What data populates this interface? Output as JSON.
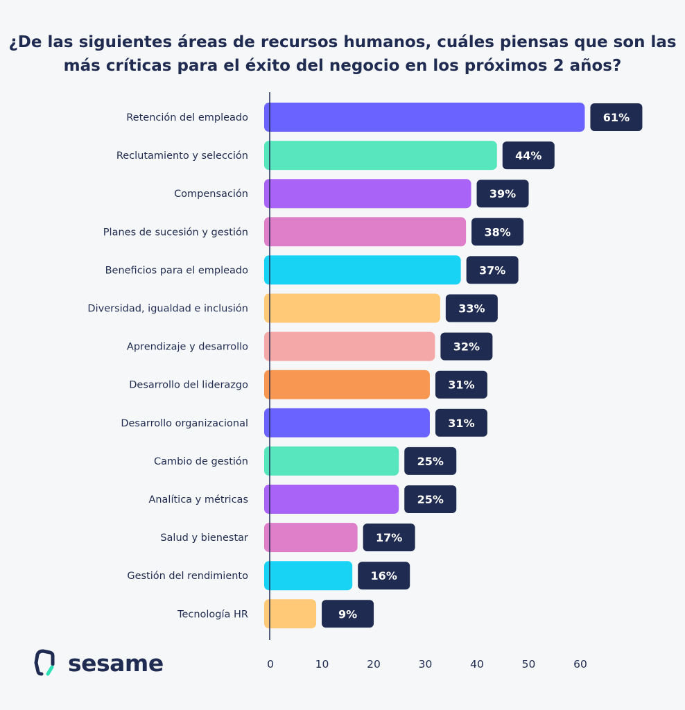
{
  "chart_data": {
    "type": "bar",
    "orientation": "horizontal",
    "title": "¿De las siguientes áreas de recursos humanos, cuáles piensas que son las más críticas para el éxito del negocio en los próximos 2 años?",
    "categories": [
      "Retención del empleado",
      "Reclutamiento y selección",
      "Compensación",
      "Planes de sucesión y gestión",
      "Beneficios para el empleado",
      "Diversidad, igualdad e inclusión",
      "Aprendizaje y desarrollo",
      "Desarrollo del liderazgo",
      "Desarrollo organizacional",
      "Cambio de gestión",
      "Analítica y métricas",
      "Salud y bienestar",
      "Gestión del rendimiento",
      "Tecnología HR"
    ],
    "values": [
      61,
      44,
      39,
      38,
      37,
      33,
      32,
      31,
      31,
      25,
      25,
      17,
      16,
      9
    ],
    "data_labels": [
      "61%",
      "44%",
      "39%",
      "38%",
      "37%",
      "33%",
      "32%",
      "31%",
      "31%",
      "25%",
      "25%",
      "17%",
      "16%",
      "9%"
    ],
    "colors": [
      "#6b63ff",
      "#57e6be",
      "#a963f7",
      "#e07fc9",
      "#19d3f5",
      "#ffc977",
      "#f5a8a8",
      "#f89752",
      "#6b63ff",
      "#57e6be",
      "#a963f7",
      "#e07fc9",
      "#19d3f5",
      "#ffc977"
    ],
    "label_box_color": "#1f2b50",
    "xlim": [
      0,
      61
    ],
    "xticks": [
      "0",
      "10",
      "20",
      "30",
      "40",
      "50",
      "60"
    ],
    "xlabel": "",
    "ylabel": "",
    "grid": false
  },
  "brand": {
    "name": "sesame"
  }
}
